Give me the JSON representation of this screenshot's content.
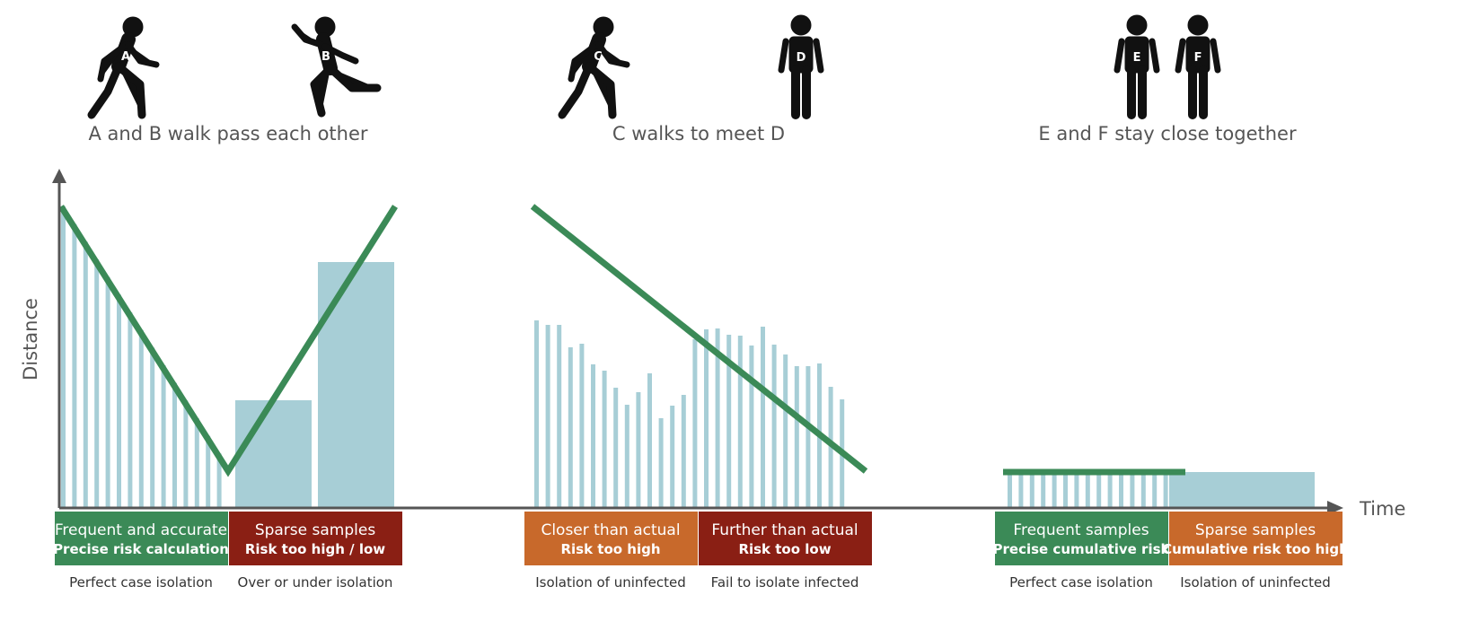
{
  "colors": {
    "green": "#3b8a57",
    "dark_red": "#8a1f14",
    "orange": "#c8692b",
    "bar": "#a7ced6",
    "axis": "#555555",
    "figure": "#111111"
  },
  "axes": {
    "y_label": "Distance",
    "x_label": "Time"
  },
  "scenarios": [
    {
      "caption": "A and B walk pass each other",
      "people": [
        {
          "letter": "A",
          "pose": "walking",
          "icon": "walking-person-icon"
        },
        {
          "letter": "B",
          "pose": "running",
          "icon": "running-person-icon"
        }
      ],
      "panels": [
        {
          "title": "Frequent and accurate",
          "subtitle": "Precise risk calculation",
          "outcome": "Perfect case isolation",
          "color": "#3b8a57"
        },
        {
          "title": "Sparse samples",
          "subtitle": "Risk too high / low",
          "outcome": "Over or under isolation",
          "color": "#8a1f14"
        }
      ]
    },
    {
      "caption": "C walks to meet D",
      "people": [
        {
          "letter": "C",
          "pose": "walking",
          "icon": "walking-person-icon"
        },
        {
          "letter": "D",
          "pose": "standing",
          "icon": "standing-person-icon"
        }
      ],
      "panels": [
        {
          "title": "Closer than actual",
          "subtitle": "Risk too high",
          "outcome": "Isolation of uninfected",
          "color": "#c8692b"
        },
        {
          "title": "Further than actual",
          "subtitle": "Risk too low",
          "outcome": "Fail to isolate infected",
          "color": "#8a1f14"
        }
      ]
    },
    {
      "caption": "E and F stay close together",
      "people": [
        {
          "letter": "E",
          "pose": "standing",
          "icon": "standing-person-icon"
        },
        {
          "letter": "F",
          "pose": "standing",
          "icon": "standing-person-icon"
        }
      ],
      "panels": [
        {
          "title": "Frequent samples",
          "subtitle": "Precise cumulative risk",
          "outcome": "Perfect case isolation",
          "color": "#3b8a57"
        },
        {
          "title": "Sparse samples",
          "subtitle": "Cumulative risk too high",
          "outcome": "Isolation of uninfected",
          "color": "#c8692b"
        }
      ]
    }
  ]
}
